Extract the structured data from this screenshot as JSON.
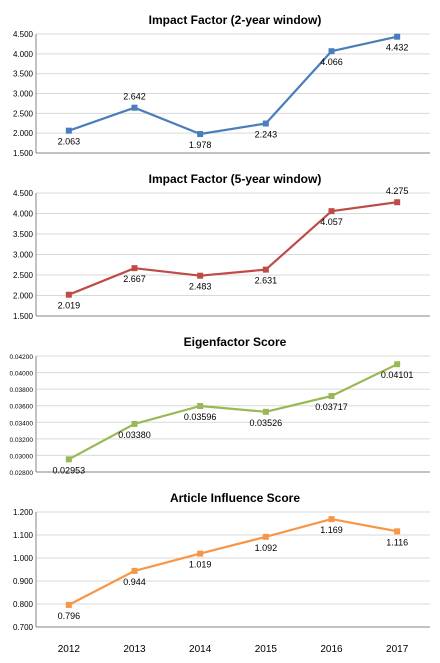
{
  "chart_data": [
    {
      "type": "line",
      "title": "Impact Factor (2-year window)",
      "categories": [
        "2012",
        "2013",
        "2014",
        "2015",
        "2016",
        "2017"
      ],
      "values": [
        2.063,
        2.642,
        1.978,
        2.243,
        4.066,
        4.432
      ],
      "data_labels": [
        "2.063",
        "2.642",
        "1.978",
        "2.243",
        "4.066",
        "4.432"
      ],
      "ylim": [
        1.5,
        4.5
      ],
      "yticks": [
        "1.500",
        "2.000",
        "2.500",
        "3.000",
        "3.500",
        "4.000",
        "4.500"
      ],
      "color": "#4a7ebb",
      "grid": true
    },
    {
      "type": "line",
      "title": "Impact Factor (5-year window)",
      "categories": [
        "2012",
        "2013",
        "2014",
        "2015",
        "2016",
        "2017"
      ],
      "values": [
        2.019,
        2.667,
        2.483,
        2.631,
        4.057,
        4.275
      ],
      "data_labels": [
        "2.019",
        "2.667",
        "2.483",
        "2.631",
        "4.057",
        "4.275"
      ],
      "ylim": [
        1.5,
        4.5
      ],
      "yticks": [
        "1.500",
        "2.000",
        "2.500",
        "3.000",
        "3.500",
        "4.000",
        "4.500"
      ],
      "color": "#be4b48",
      "grid": true
    },
    {
      "type": "line",
      "title": "Eigenfactor Score",
      "categories": [
        "2012",
        "2013",
        "2014",
        "2015",
        "2016",
        "2017"
      ],
      "values": [
        0.02953,
        0.0338,
        0.03596,
        0.03526,
        0.03717,
        0.04101
      ],
      "data_labels": [
        "0.02953",
        "0.03380",
        "0.03596",
        "0.03526",
        "0.03717",
        "0.04101"
      ],
      "ylim": [
        0.028,
        0.042
      ],
      "yticks": [
        "0.02800",
        "0.03000",
        "0.03200",
        "0.03400",
        "0.03600",
        "0.03800",
        "0.04000",
        "0.04200"
      ],
      "color": "#98b954",
      "grid": true
    },
    {
      "type": "line",
      "title": "Article Influence Score",
      "categories": [
        "2012",
        "2013",
        "2014",
        "2015",
        "2016",
        "2017"
      ],
      "values": [
        0.796,
        0.944,
        1.019,
        1.092,
        1.169,
        1.116
      ],
      "data_labels": [
        "0.796",
        "0.944",
        "1.019",
        "1.092",
        "1.169",
        "1.116"
      ],
      "ylim": [
        0.7,
        1.2
      ],
      "yticks": [
        "0.700",
        "0.800",
        "0.900",
        "1.000",
        "1.100",
        "1.200"
      ],
      "color": "#f79646",
      "grid": true
    }
  ],
  "x_axis": {
    "tick_labels": [
      "2012",
      "2013",
      "2014",
      "2015",
      "2016",
      "2017"
    ]
  }
}
